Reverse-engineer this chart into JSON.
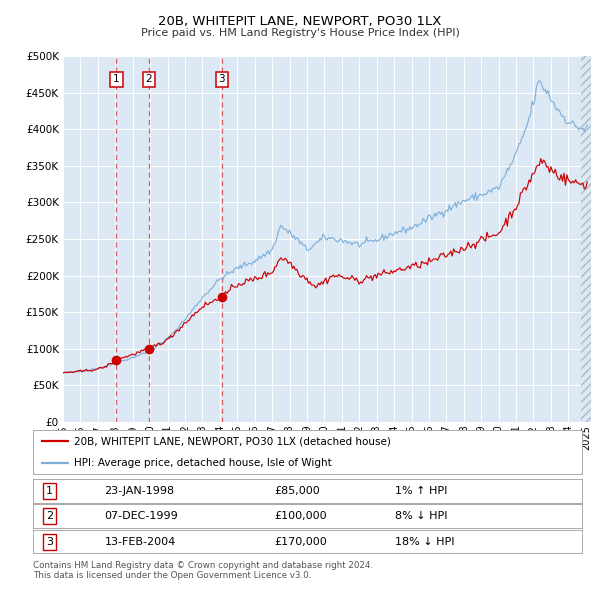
{
  "title": "20B, WHITEPIT LANE, NEWPORT, PO30 1LX",
  "subtitle": "Price paid vs. HM Land Registry's House Price Index (HPI)",
  "plot_bg_color": "#dce9f5",
  "red_line_color": "#cc0000",
  "blue_line_color": "#7aadda",
  "dashed_line_color": "#cc0000",
  "sale_points": [
    {
      "date_num": 1998.07,
      "price": 85000,
      "label": "1"
    },
    {
      "date_num": 1999.92,
      "price": 100000,
      "label": "2"
    },
    {
      "date_num": 2004.12,
      "price": 170000,
      "label": "3"
    }
  ],
  "legend_entries": [
    "20B, WHITEPIT LANE, NEWPORT, PO30 1LX (detached house)",
    "HPI: Average price, detached house, Isle of Wight"
  ],
  "table_rows": [
    {
      "num": "1",
      "date": "23-JAN-1998",
      "price": "£85,000",
      "hpi": "1% ↑ HPI"
    },
    {
      "num": "2",
      "date": "07-DEC-1999",
      "price": "£100,000",
      "hpi": "8% ↓ HPI"
    },
    {
      "num": "3",
      "date": "13-FEB-2004",
      "price": "£170,000",
      "hpi": "18% ↓ HPI"
    }
  ],
  "footer": "Contains HM Land Registry data © Crown copyright and database right 2024.\nThis data is licensed under the Open Government Licence v3.0.",
  "ylim": [
    0,
    500000
  ],
  "yticks": [
    0,
    50000,
    100000,
    150000,
    200000,
    250000,
    300000,
    350000,
    400000,
    450000,
    500000
  ],
  "xlim_start": 1995.0,
  "xlim_end": 2025.3
}
